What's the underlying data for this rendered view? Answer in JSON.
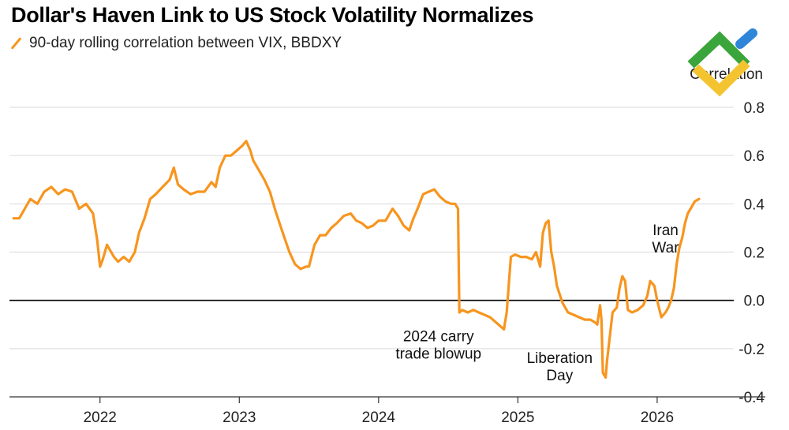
{
  "header": {
    "title": "Dollar's Haven Link to US Stock Volatility Normalizes"
  },
  "legend": {
    "label": "90-day rolling correlation between VIX, BBDXY"
  },
  "colors": {
    "series": "#f7951f",
    "grid": "#d9d9d9",
    "zero_line": "#000000"
  },
  "logo": {
    "icon": "chevron-logo-icon",
    "colors": [
      "#3aa53a",
      "#f4c430",
      "#2f86d8"
    ]
  },
  "chart_data": {
    "type": "line",
    "title": "Dollar's Haven Link to US Stock Volatility Normalizes",
    "ylabel": "Correlation",
    "xlabel": "",
    "ylim": [
      -0.4,
      0.8
    ],
    "yticks": [
      "0.8",
      "0.6",
      "0.4",
      "0.2",
      "0.0",
      "-0.2",
      "-0.4"
    ],
    "ytick_values": [
      0.8,
      0.6,
      0.4,
      0.2,
      0.0,
      -0.2,
      -0.4
    ],
    "xlim": [
      2021.35,
      2026.55
    ],
    "xticks": [
      "2022",
      "2023",
      "2024",
      "2025",
      "2026"
    ],
    "xtick_values": [
      2022,
      2023,
      2024,
      2025,
      2026
    ],
    "grid": true,
    "legend_position": "top-left",
    "series": [
      {
        "name": "90-day rolling correlation between VIX, BBDXY",
        "points": [
          [
            2021.38,
            0.34
          ],
          [
            2021.42,
            0.34
          ],
          [
            2021.46,
            0.38
          ],
          [
            2021.5,
            0.42
          ],
          [
            2021.55,
            0.4
          ],
          [
            2021.6,
            0.45
          ],
          [
            2021.65,
            0.47
          ],
          [
            2021.7,
            0.44
          ],
          [
            2021.75,
            0.46
          ],
          [
            2021.8,
            0.45
          ],
          [
            2021.85,
            0.38
          ],
          [
            2021.9,
            0.4
          ],
          [
            2021.95,
            0.36
          ],
          [
            2021.98,
            0.25
          ],
          [
            2022.0,
            0.14
          ],
          [
            2022.02,
            0.17
          ],
          [
            2022.05,
            0.23
          ],
          [
            2022.08,
            0.2
          ],
          [
            2022.1,
            0.18
          ],
          [
            2022.13,
            0.16
          ],
          [
            2022.17,
            0.18
          ],
          [
            2022.21,
            0.16
          ],
          [
            2022.25,
            0.2
          ],
          [
            2022.28,
            0.28
          ],
          [
            2022.32,
            0.34
          ],
          [
            2022.36,
            0.42
          ],
          [
            2022.4,
            0.44
          ],
          [
            2022.45,
            0.47
          ],
          [
            2022.5,
            0.5
          ],
          [
            2022.53,
            0.55
          ],
          [
            2022.56,
            0.48
          ],
          [
            2022.6,
            0.46
          ],
          [
            2022.65,
            0.44
          ],
          [
            2022.7,
            0.45
          ],
          [
            2022.75,
            0.45
          ],
          [
            2022.8,
            0.49
          ],
          [
            2022.83,
            0.47
          ],
          [
            2022.86,
            0.55
          ],
          [
            2022.9,
            0.6
          ],
          [
            2022.94,
            0.6
          ],
          [
            2022.98,
            0.62
          ],
          [
            2023.02,
            0.64
          ],
          [
            2023.05,
            0.66
          ],
          [
            2023.08,
            0.62
          ],
          [
            2023.1,
            0.58
          ],
          [
            2023.14,
            0.54
          ],
          [
            2023.18,
            0.5
          ],
          [
            2023.22,
            0.45
          ],
          [
            2023.26,
            0.37
          ],
          [
            2023.3,
            0.3
          ],
          [
            2023.33,
            0.25
          ],
          [
            2023.36,
            0.2
          ],
          [
            2023.4,
            0.15
          ],
          [
            2023.44,
            0.13
          ],
          [
            2023.48,
            0.14
          ],
          [
            2023.5,
            0.14
          ],
          [
            2023.54,
            0.23
          ],
          [
            2023.58,
            0.27
          ],
          [
            2023.62,
            0.27
          ],
          [
            2023.66,
            0.3
          ],
          [
            2023.7,
            0.32
          ],
          [
            2023.75,
            0.35
          ],
          [
            2023.8,
            0.36
          ],
          [
            2023.84,
            0.33
          ],
          [
            2023.88,
            0.32
          ],
          [
            2023.92,
            0.3
          ],
          [
            2023.96,
            0.31
          ],
          [
            2024.0,
            0.33
          ],
          [
            2024.05,
            0.33
          ],
          [
            2024.1,
            0.38
          ],
          [
            2024.14,
            0.35
          ],
          [
            2024.18,
            0.31
          ],
          [
            2024.22,
            0.29
          ],
          [
            2024.25,
            0.34
          ],
          [
            2024.28,
            0.38
          ],
          [
            2024.32,
            0.44
          ],
          [
            2024.36,
            0.45
          ],
          [
            2024.4,
            0.46
          ],
          [
            2024.44,
            0.43
          ],
          [
            2024.48,
            0.41
          ],
          [
            2024.52,
            0.4
          ],
          [
            2024.55,
            0.4
          ],
          [
            2024.57,
            0.38
          ],
          [
            2024.58,
            -0.05
          ],
          [
            2024.6,
            -0.04
          ],
          [
            2024.64,
            -0.05
          ],
          [
            2024.68,
            -0.04
          ],
          [
            2024.72,
            -0.05
          ],
          [
            2024.76,
            -0.06
          ],
          [
            2024.8,
            -0.07
          ],
          [
            2024.84,
            -0.09
          ],
          [
            2024.88,
            -0.11
          ],
          [
            2024.9,
            -0.12
          ],
          [
            2024.92,
            -0.05
          ],
          [
            2024.95,
            0.18
          ],
          [
            2024.98,
            0.19
          ],
          [
            2025.02,
            0.18
          ],
          [
            2025.06,
            0.18
          ],
          [
            2025.1,
            0.17
          ],
          [
            2025.13,
            0.2
          ],
          [
            2025.16,
            0.14
          ],
          [
            2025.18,
            0.28
          ],
          [
            2025.2,
            0.32
          ],
          [
            2025.22,
            0.33
          ],
          [
            2025.24,
            0.2
          ],
          [
            2025.26,
            0.14
          ],
          [
            2025.28,
            0.06
          ],
          [
            2025.32,
            -0.01
          ],
          [
            2025.36,
            -0.05
          ],
          [
            2025.4,
            -0.06
          ],
          [
            2025.44,
            -0.07
          ],
          [
            2025.48,
            -0.08
          ],
          [
            2025.52,
            -0.08
          ],
          [
            2025.55,
            -0.09
          ],
          [
            2025.57,
            -0.1
          ],
          [
            2025.59,
            -0.02
          ],
          [
            2025.6,
            -0.08
          ],
          [
            2025.61,
            -0.3
          ],
          [
            2025.63,
            -0.32
          ],
          [
            2025.64,
            -0.25
          ],
          [
            2025.66,
            -0.15
          ],
          [
            2025.68,
            -0.05
          ],
          [
            2025.71,
            -0.03
          ],
          [
            2025.73,
            0.05
          ],
          [
            2025.75,
            0.1
          ],
          [
            2025.77,
            0.08
          ],
          [
            2025.79,
            -0.04
          ],
          [
            2025.82,
            -0.05
          ],
          [
            2025.86,
            -0.04
          ],
          [
            2025.9,
            -0.02
          ],
          [
            2025.93,
            0.02
          ],
          [
            2025.95,
            0.08
          ],
          [
            2025.98,
            0.06
          ],
          [
            2026.0,
            0.0
          ],
          [
            2026.03,
            -0.07
          ],
          [
            2026.06,
            -0.05
          ],
          [
            2026.08,
            -0.03
          ],
          [
            2026.1,
            0.0
          ],
          [
            2026.12,
            0.05
          ],
          [
            2026.14,
            0.15
          ],
          [
            2026.16,
            0.22
          ],
          [
            2026.18,
            0.26
          ],
          [
            2026.2,
            0.32
          ],
          [
            2026.22,
            0.36
          ],
          [
            2026.24,
            0.38
          ],
          [
            2026.27,
            0.41
          ],
          [
            2026.3,
            0.42
          ]
        ]
      }
    ],
    "annotations": [
      {
        "lines": [
          "2024 carry",
          "trade blowup"
        ],
        "x": 2024.43,
        "y": -0.17
      },
      {
        "lines": [
          "Liberation",
          "Day"
        ],
        "x": 2025.3,
        "y": -0.26
      },
      {
        "lines": [
          "Iran",
          "War"
        ],
        "x": 2026.06,
        "y": 0.27
      }
    ]
  }
}
